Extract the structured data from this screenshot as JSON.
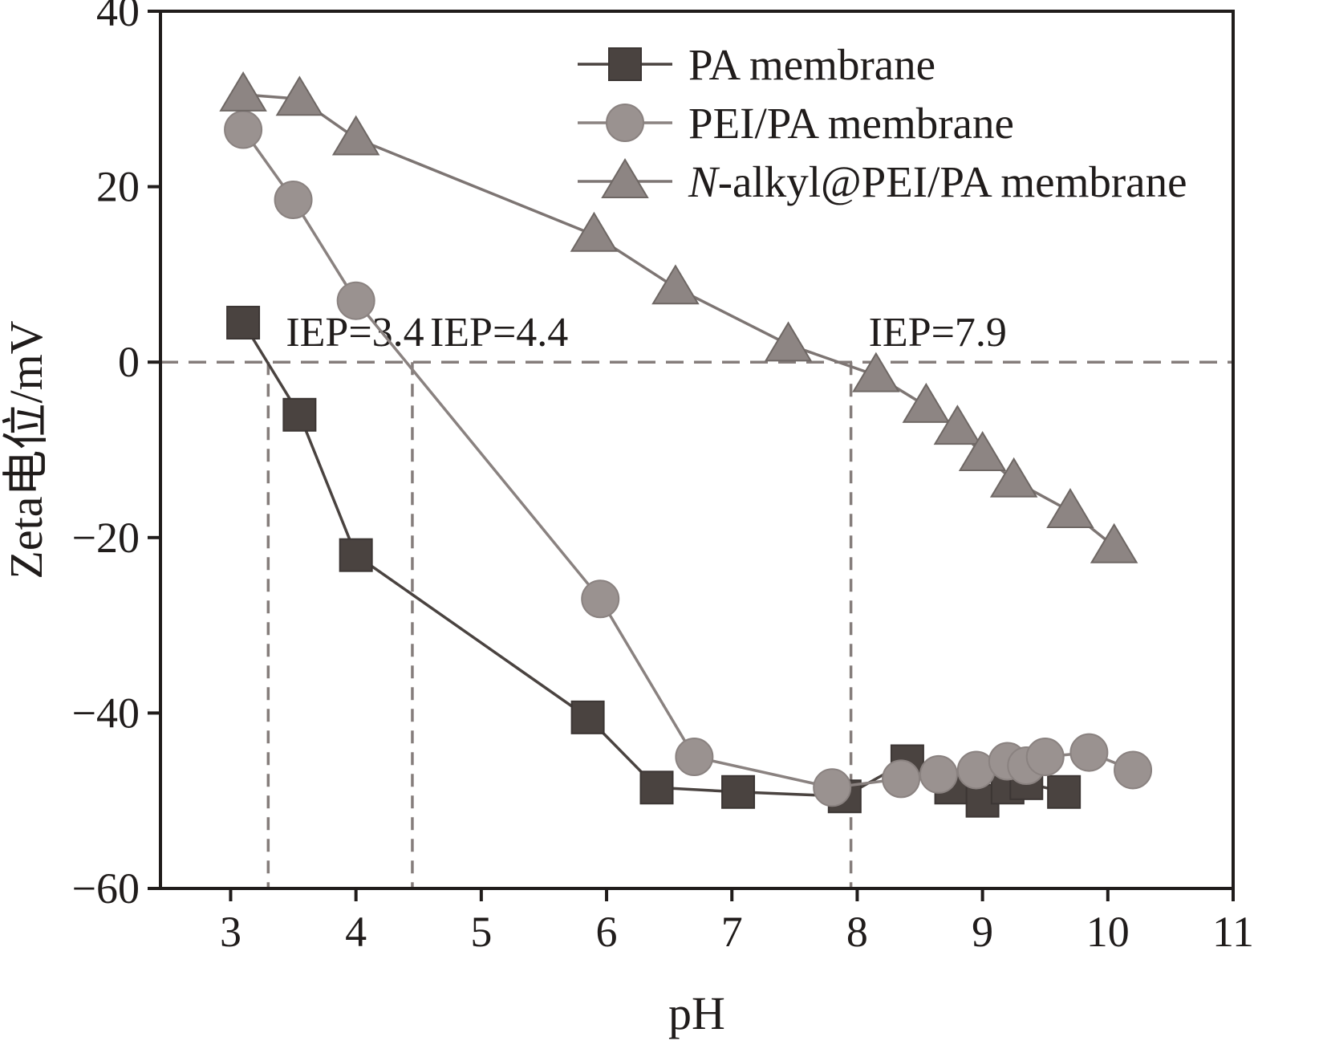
{
  "figure": {
    "background": "#ffffff"
  },
  "chart_data": {
    "type": "line",
    "title": "",
    "xlabel": "pH",
    "ylabel": "Zeta电位/mV",
    "xlim": [
      2.44,
      11
    ],
    "ylim": [
      -60,
      40
    ],
    "xticks": [
      3,
      4,
      5,
      6,
      7,
      8,
      9,
      10,
      11
    ],
    "yticks": [
      -60,
      -40,
      -20,
      0,
      20,
      40
    ],
    "grid": false,
    "legend_position": "top-right-inside",
    "zero_line": {
      "y": 0,
      "style": "dashed"
    },
    "annotations": [
      {
        "x": 3.3,
        "label": "IEP=3.4"
      },
      {
        "x": 4.45,
        "label": "IEP=4.4"
      },
      {
        "x": 7.95,
        "label": "IEP=7.9"
      }
    ],
    "colors": {
      "axis": "#201c1b",
      "text": "#201c1b",
      "dashed": "#857d7b",
      "background": "#ffffff"
    },
    "series": [
      {
        "name": "PA membrane",
        "italic_first": false,
        "marker": "square",
        "fill": "#4a4340",
        "edge": "#3c3634",
        "line_color": "#4a4340",
        "points": [
          [
            3.1,
            4.5
          ],
          [
            3.55,
            -6
          ],
          [
            4.0,
            -22
          ],
          [
            5.85,
            -40.5
          ],
          [
            6.4,
            -48.5
          ],
          [
            7.05,
            -49
          ],
          [
            7.9,
            -49.5
          ],
          [
            8.4,
            -45.5
          ],
          [
            8.75,
            -48.5
          ],
          [
            9.0,
            -50
          ],
          [
            9.2,
            -48.5
          ],
          [
            9.35,
            -48
          ],
          [
            9.65,
            -49
          ]
        ]
      },
      {
        "name": "PEI/PA membrane",
        "italic_first": false,
        "marker": "circle",
        "fill": "#9a9290",
        "edge": "#8a8280",
        "line_color": "#8a8280",
        "points": [
          [
            3.1,
            26.5
          ],
          [
            3.5,
            18.5
          ],
          [
            4.0,
            7
          ],
          [
            5.95,
            -27
          ],
          [
            6.7,
            -45
          ],
          [
            7.8,
            -48.5
          ],
          [
            8.35,
            -47.5
          ],
          [
            8.65,
            -47
          ],
          [
            8.95,
            -46.5
          ],
          [
            9.2,
            -45.5
          ],
          [
            9.35,
            -46
          ],
          [
            9.5,
            -45
          ],
          [
            9.85,
            -44.5
          ],
          [
            10.2,
            -46.5
          ]
        ]
      },
      {
        "name": "N-alkyl@PEI/PA membrane",
        "italic_first": true,
        "marker": "triangle",
        "fill": "#8d8583",
        "edge": "#6e6764",
        "line_color": "#7d7573",
        "points": [
          [
            3.1,
            30.5
          ],
          [
            3.55,
            30
          ],
          [
            4.0,
            25.5
          ],
          [
            5.9,
            14.5
          ],
          [
            6.55,
            8.5
          ],
          [
            7.45,
            2
          ],
          [
            8.15,
            -1.5
          ],
          [
            8.55,
            -5
          ],
          [
            8.8,
            -7.5
          ],
          [
            9.0,
            -10.5
          ],
          [
            9.25,
            -13.5
          ],
          [
            9.7,
            -17
          ],
          [
            10.05,
            -21
          ]
        ]
      }
    ]
  }
}
